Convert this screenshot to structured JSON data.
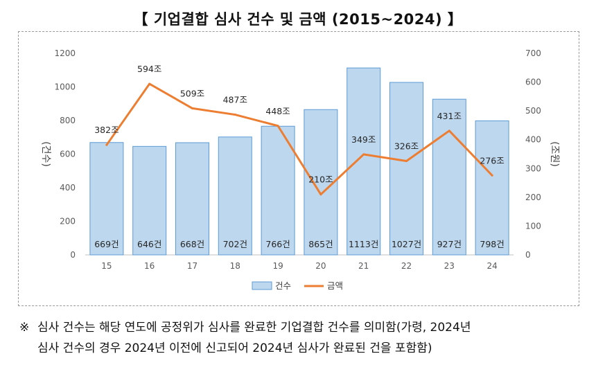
{
  "title": "【 기업결합 심사 건수 및 금액 (2015~2024) 】",
  "chart_data": {
    "type": "bar+line",
    "categories": [
      "15",
      "16",
      "17",
      "18",
      "19",
      "20",
      "21",
      "22",
      "23",
      "24"
    ],
    "series": [
      {
        "name": "건수",
        "type": "bar",
        "axis": "left",
        "values": [
          669,
          646,
          668,
          702,
          766,
          865,
          1113,
          1027,
          927,
          798
        ],
        "labels": [
          "669건",
          "646건",
          "668건",
          "702건",
          "766건",
          "865건",
          "1113건",
          "1027건",
          "927건",
          "798건"
        ],
        "color": "#bdd7ee",
        "border": "#5b9bd5"
      },
      {
        "name": "금액",
        "type": "line",
        "axis": "right",
        "values": [
          382,
          594,
          509,
          487,
          448,
          210,
          349,
          326,
          431,
          276
        ],
        "labels": [
          "382조",
          "594조",
          "509조",
          "487조",
          "448조",
          "210조",
          "349조",
          "326조",
          "431조",
          "276조"
        ],
        "color": "#ed7d31"
      }
    ],
    "ylabel_left": "(건수)",
    "ylabel_right": "(조원)",
    "ylim_left": [
      0,
      1200
    ],
    "ylim_right": [
      0,
      700
    ],
    "yticks_left": [
      "0",
      "200",
      "400",
      "600",
      "800",
      "1000",
      "1200"
    ],
    "yticks_right": [
      "0",
      "100",
      "200",
      "300",
      "400",
      "500",
      "600",
      "700"
    ],
    "grid": false,
    "legend": "bottom"
  },
  "footnote": {
    "mark": "※",
    "line1": "심사 건수는 해당 연도에 공정위가 심사를 완료한 기업결합 건수를 의미함(가령, 2024년",
    "line2": "심사 건수의 경우 2024년 이전에 신고되어 2024년 심사가 완료된 건을 포함함)"
  }
}
